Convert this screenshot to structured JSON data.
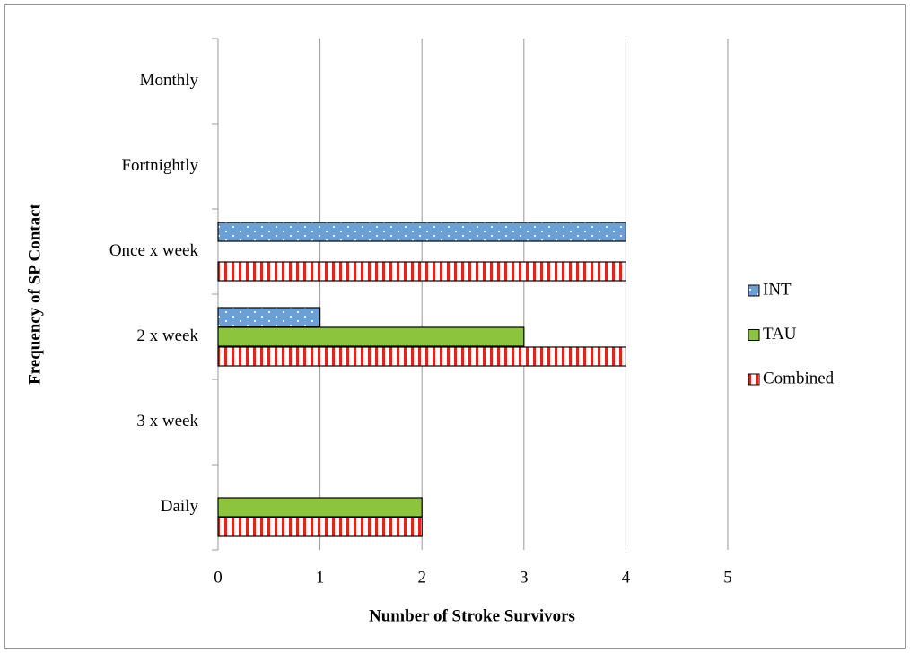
{
  "chart_data": {
    "type": "barh",
    "xlabel": "Number of Stroke Survivors",
    "ylabel": "Frequency of SP Contact",
    "categories": [
      "Daily",
      "3 x week",
      "2 x week",
      "Once x week",
      "Fortnightly",
      "Monthly"
    ],
    "series": [
      {
        "name": "INT",
        "color": "#6a9fd8",
        "values": [
          0,
          0,
          1,
          4,
          0,
          0
        ]
      },
      {
        "name": "TAU",
        "color": "#8cc43e",
        "values": [
          2,
          0,
          3,
          0,
          0,
          0
        ]
      },
      {
        "name": "Combined",
        "color": "#e3231c",
        "values": [
          2,
          0,
          4,
          4,
          0,
          0
        ]
      }
    ],
    "xlim": [
      0,
      5
    ],
    "xticks": [
      0,
      1,
      2,
      3,
      4,
      5
    ],
    "grid": true,
    "legend": "right"
  }
}
